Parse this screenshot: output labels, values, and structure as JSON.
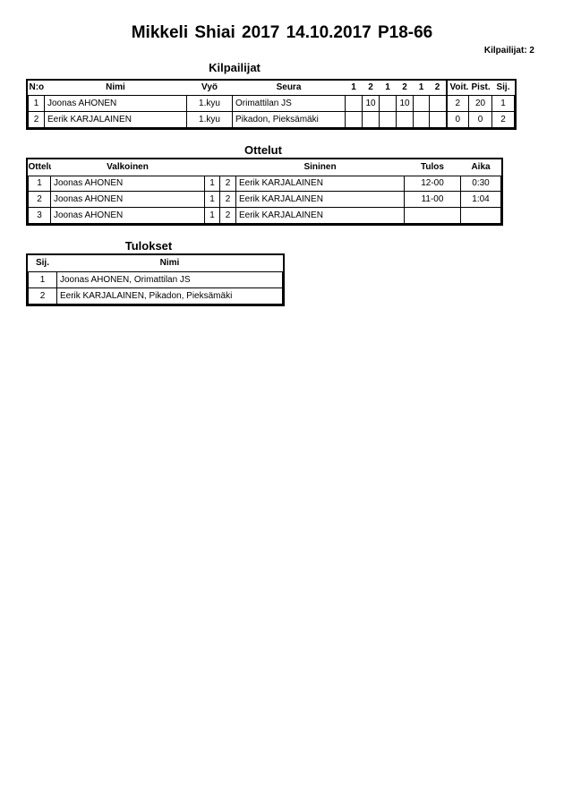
{
  "header": {
    "title": "Mikkeli Shiai 2017  14.10.2017     P18-66",
    "competitor_count": "Kilpailijat: 2"
  },
  "competitors": {
    "title": "Kilpailijat",
    "columns": [
      "N:o",
      "Nimi",
      "Vyö",
      "Seura",
      "1",
      "2",
      "1",
      "2",
      "1",
      "2",
      "Voit.",
      "Pist.",
      "Sij."
    ],
    "rows": [
      [
        "1",
        "Joonas AHONEN",
        "1.kyu",
        "Orimattilan JS",
        "",
        "10",
        "",
        "10",
        "",
        "",
        "2",
        "20",
        "1"
      ],
      [
        "2",
        "Eerik KARJALAINEN",
        "1.kyu",
        "Pikadon, Pieksämäki",
        "",
        "",
        "",
        "",
        "",
        "",
        "0",
        "0",
        "2"
      ]
    ]
  },
  "matches": {
    "title": "Ottelut",
    "columns": [
      "Ottelu",
      "Valkoinen",
      "",
      "",
      "Sininen",
      "Tulos",
      "Aika"
    ],
    "rows": [
      [
        "1",
        "Joonas AHONEN",
        "1",
        "2",
        "Eerik KARJALAINEN",
        "12-00",
        "0:30"
      ],
      [
        "2",
        "Joonas AHONEN",
        "1",
        "2",
        "Eerik KARJALAINEN",
        "11-00",
        "1:04"
      ],
      [
        "3",
        "Joonas AHONEN",
        "1",
        "2",
        "Eerik KARJALAINEN",
        "",
        ""
      ]
    ]
  },
  "results": {
    "title": "Tulokset",
    "columns": [
      "Sij.",
      "Nimi"
    ],
    "rows": [
      [
        "1",
        "Joonas AHONEN, Orimattilan JS"
      ],
      [
        "2",
        "Eerik KARJALAINEN, Pikadon, Pieksämäki"
      ]
    ]
  }
}
